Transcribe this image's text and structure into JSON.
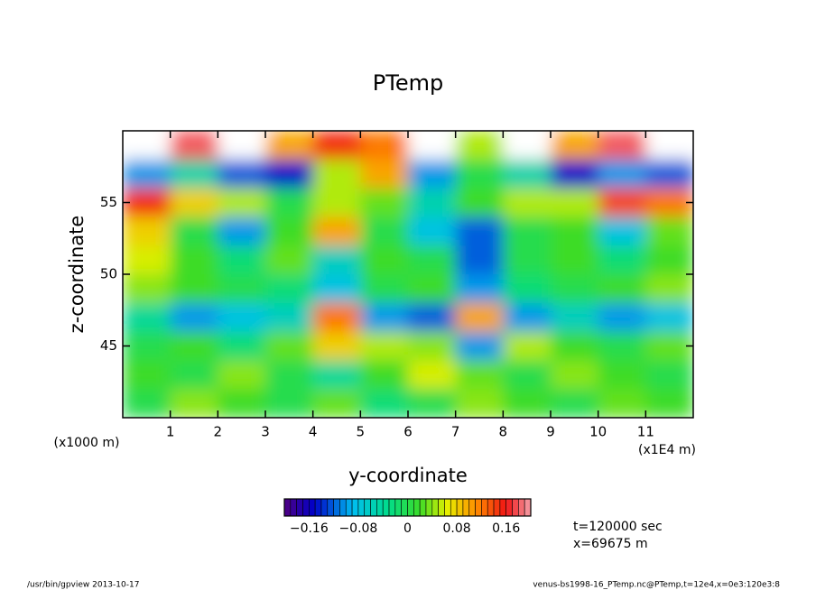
{
  "chart_data": {
    "type": "contour",
    "title": "PTemp",
    "x_label": "y-coordinate",
    "y_label": "z-coordinate",
    "x_unit": "(x1E4 m)",
    "y_unit": "(x1000 m)",
    "xlim": [
      0,
      12
    ],
    "ylim": [
      40,
      60
    ],
    "xticks": [
      1,
      2,
      3,
      4,
      5,
      6,
      7,
      8,
      9,
      10,
      11
    ],
    "yticks": [
      45,
      50,
      55
    ],
    "x": [
      0.5,
      1.5,
      2.5,
      3.5,
      4.5,
      5.5,
      6.5,
      7.5,
      8.5,
      9.5,
      10.5,
      11.5
    ],
    "y": [
      59,
      57,
      55,
      53,
      51,
      49,
      47,
      45,
      43,
      41
    ],
    "z": [
      [
        0.25,
        0.18,
        0.25,
        0.1,
        0.15,
        0.12,
        0.25,
        0.05,
        0.25,
        0.1,
        0.18,
        0.25
      ],
      [
        -0.1,
        -0.05,
        -0.12,
        -0.15,
        0.05,
        0.1,
        -0.1,
        0.0,
        -0.05,
        -0.15,
        -0.1,
        -0.12
      ],
      [
        0.15,
        0.08,
        0.05,
        0.0,
        0.05,
        0.03,
        -0.05,
        0.02,
        0.05,
        0.05,
        0.14,
        0.12
      ],
      [
        0.08,
        0.0,
        -0.1,
        0.02,
        0.1,
        0.0,
        -0.08,
        -0.12,
        0.0,
        0.02,
        -0.08,
        0.03
      ],
      [
        0.06,
        0.02,
        -0.02,
        0.03,
        -0.06,
        0.02,
        0.0,
        -0.12,
        0.0,
        0.02,
        -0.02,
        0.02
      ],
      [
        0.04,
        0.02,
        0.0,
        -0.02,
        -0.08,
        0.0,
        0.02,
        -0.1,
        -0.02,
        0.0,
        0.02,
        0.04
      ],
      [
        -0.04,
        -0.1,
        -0.08,
        -0.06,
        0.12,
        -0.1,
        -0.12,
        0.1,
        -0.1,
        -0.06,
        -0.1,
        -0.08
      ],
      [
        0.0,
        0.02,
        -0.02,
        0.03,
        0.08,
        0.05,
        0.04,
        -0.1,
        0.05,
        0.02,
        0.0,
        0.03
      ],
      [
        0.02,
        0.0,
        0.04,
        0.0,
        -0.04,
        0.02,
        0.06,
        0.03,
        0.0,
        0.04,
        0.02,
        0.0
      ],
      [
        0.0,
        0.04,
        0.02,
        0.0,
        0.03,
        -0.02,
        0.0,
        0.04,
        0.02,
        0.0,
        0.03,
        0.02
      ]
    ],
    "colorbar": {
      "lim": [
        -0.2,
        0.2
      ],
      "levels": 40,
      "ticks": [
        {
          "value": -0.16,
          "label": "−0.16"
        },
        {
          "value": -0.08,
          "label": "−0.08"
        },
        0,
        0.08,
        0.16
      ]
    },
    "annotations": [
      "t=120000 sec",
      "x=69675 m"
    ],
    "footer_left": "/usr/bin/gpview   2013-10-17",
    "footer_right": "venus-bs1998-16_PTemp.nc@PTemp,t=12e4,x=0e3:120e3:8"
  }
}
